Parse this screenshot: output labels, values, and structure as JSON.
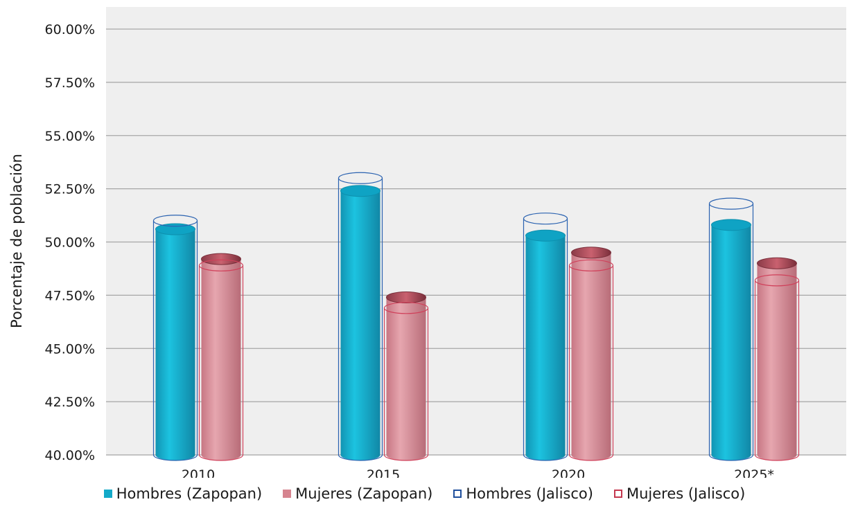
{
  "chart_data": {
    "type": "bar",
    "categories": [
      "2010",
      "2015",
      "2020",
      "2025*"
    ],
    "ylabel": "Porcentaje de población",
    "xlabel": "",
    "ylim": [
      40,
      60
    ],
    "y_ticks": [
      "40.00%",
      "42.50%",
      "45.00%",
      "47.50%",
      "50.00%",
      "52.50%",
      "55.00%",
      "57.50%",
      "60.00%"
    ],
    "grid": true,
    "legend_position": "bottom",
    "series": [
      {
        "name": "Hombres (Zapopan)",
        "values": [
          50.6,
          52.4,
          50.3,
          50.8
        ],
        "color": "#13a9c8",
        "style": "filled"
      },
      {
        "name": "Mujeres (Zapopan)",
        "values": [
          49.2,
          47.4,
          49.5,
          49.0
        ],
        "color": "#d6848f",
        "style": "filled"
      },
      {
        "name": "Hombres (Jalisco)",
        "values": [
          51.0,
          53.0,
          51.1,
          51.8
        ],
        "color": "#1f4f9c",
        "style": "outline"
      },
      {
        "name": "Mujeres (Jalisco)",
        "values": [
          48.9,
          46.9,
          48.9,
          48.2
        ],
        "color": "#c4384f",
        "style": "outline"
      }
    ]
  }
}
